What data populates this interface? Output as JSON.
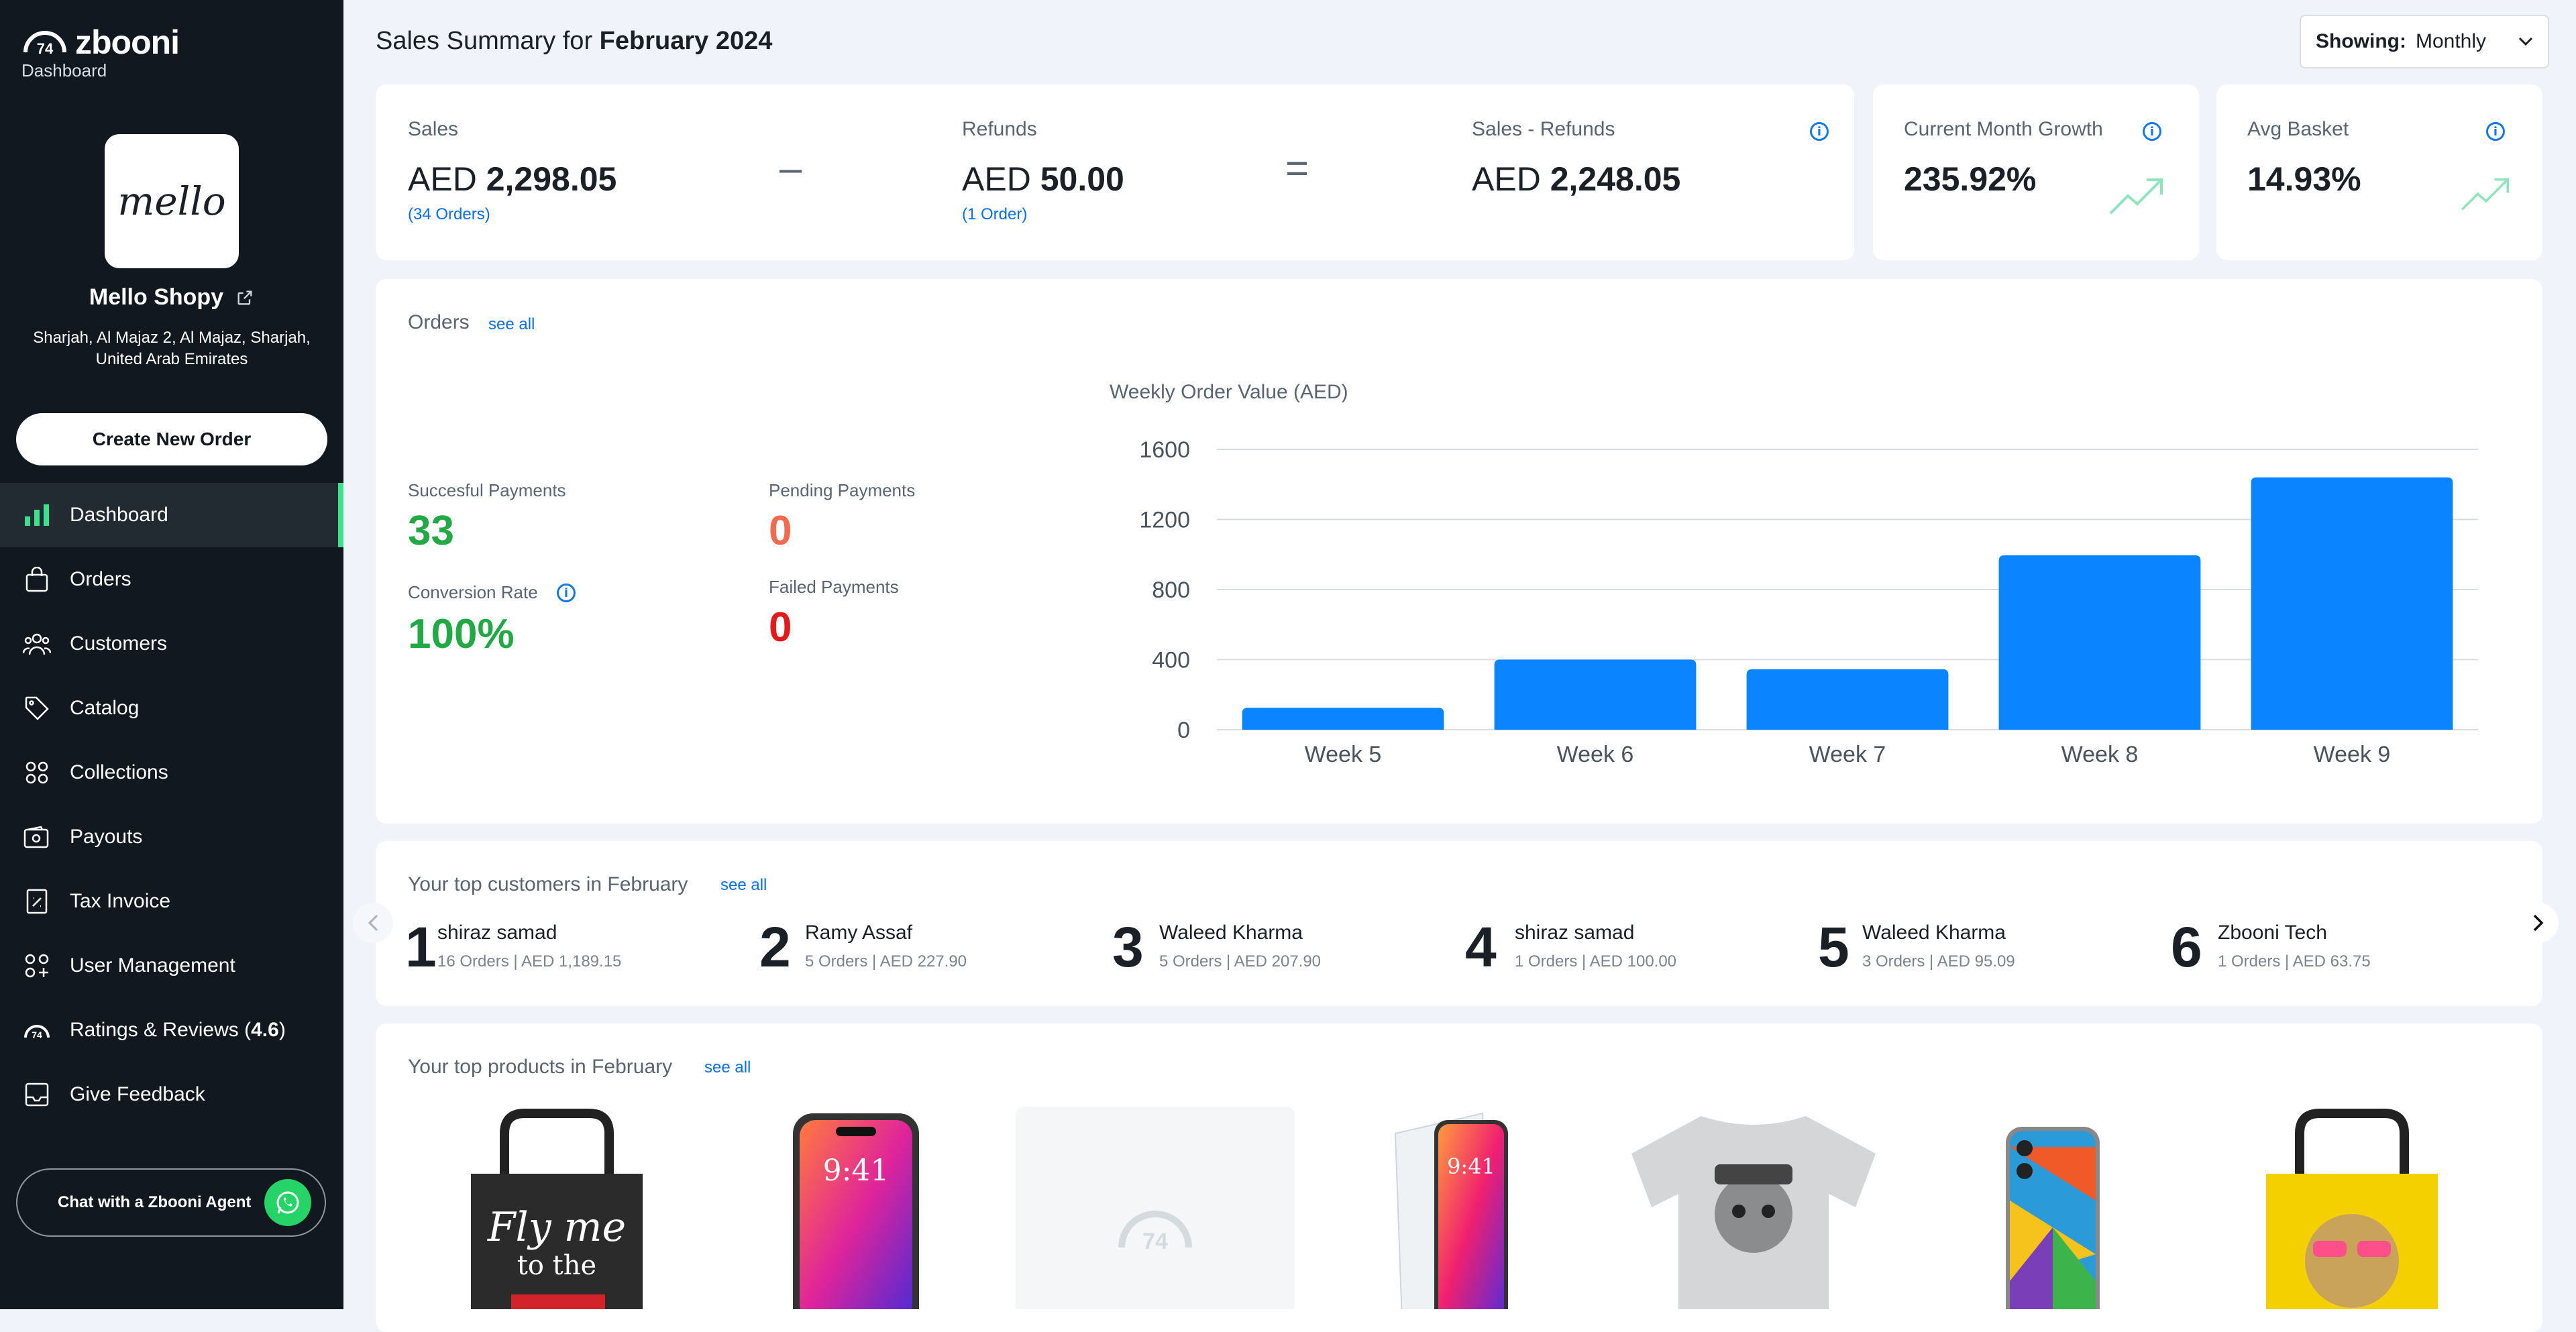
{
  "sidebar": {
    "brand_name": "zbooni",
    "brand_sub": "Dashboard",
    "store_logo_text": "mello",
    "store_name": "Mello Shopy",
    "store_address": "Sharjah, Al Majaz 2, Al Majaz, Sharjah, United Arab Emirates",
    "create_order_label": "Create New Order",
    "nav": [
      {
        "label": "Dashboard",
        "icon": "bar-chart-icon"
      },
      {
        "label": "Orders",
        "icon": "shopping-bag-icon"
      },
      {
        "label": "Customers",
        "icon": "users-icon"
      },
      {
        "label": "Catalog",
        "icon": "tag-icon"
      },
      {
        "label": "Collections",
        "icon": "grid-icon"
      },
      {
        "label": "Payouts",
        "icon": "wallet-icon"
      },
      {
        "label": "Tax Invoice",
        "icon": "invoice-icon"
      },
      {
        "label": "User Management",
        "icon": "user-management-icon"
      },
      {
        "label": "Ratings & Reviews (",
        "rating": "4.6",
        "suffix": ")",
        "icon": "zbooni-rating-icon"
      },
      {
        "label": "Give Feedback",
        "icon": "feedback-icon"
      }
    ],
    "chat_label": "Chat with a Zbooni Agent"
  },
  "header": {
    "title_prefix": "Sales Summary for",
    "title_period": "February 2024",
    "showing_label": "Showing:",
    "showing_value": "Monthly"
  },
  "summary": {
    "sales_label": "Sales",
    "sales_currency": "AED",
    "sales_value": "2,298.05",
    "sales_orders": "(34 Orders)",
    "minus_symbol": "–",
    "refunds_label": "Refunds",
    "refunds_currency": "AED",
    "refunds_value": "50.00",
    "refunds_orders": "(1 Order)",
    "equals_symbol": "=",
    "net_label": "Sales - Refunds",
    "net_currency": "AED",
    "net_value": "2,248.05",
    "growth_label": "Current Month Growth",
    "growth_value": "235.92%",
    "basket_label": "Avg Basket",
    "basket_value": "14.93%"
  },
  "orders": {
    "title": "Orders",
    "see_all": "see all",
    "successful_label": "Succesful Payments",
    "successful_value": "33",
    "pending_label": "Pending Payments",
    "pending_value": "0",
    "conversion_label": "Conversion Rate",
    "conversion_value": "100%",
    "failed_label": "Failed Payments",
    "failed_value": "0"
  },
  "chart_data": {
    "type": "bar",
    "title": "Weekly Order Value (AED)",
    "categories": [
      "Week 5",
      "Week 6",
      "Week 7",
      "Week 8",
      "Week 9"
    ],
    "values": [
      125,
      400,
      345,
      995,
      1440
    ],
    "yticks": [
      0,
      400,
      800,
      1200,
      1600
    ],
    "ylim": [
      0,
      1600
    ],
    "grid": true,
    "bar_color": "#0a84ff"
  },
  "customers": {
    "title": "Your top customers in February",
    "see_all": "see all",
    "items": [
      {
        "rank": "1",
        "name": "shiraz samad",
        "sub": "16 Orders | AED 1,189.15"
      },
      {
        "rank": "2",
        "name": "Ramy Assaf",
        "sub": "5 Orders | AED 227.90"
      },
      {
        "rank": "3",
        "name": "Waleed Kharma",
        "sub": "5 Orders | AED 207.90"
      },
      {
        "rank": "4",
        "name": "shiraz samad",
        "sub": "1 Orders | AED 100.00"
      },
      {
        "rank": "5",
        "name": "Waleed Kharma",
        "sub": "3 Orders | AED 95.09"
      },
      {
        "rank": "6",
        "name": "Zbooni Tech",
        "sub": "1 Orders | AED 63.75"
      }
    ]
  },
  "products": {
    "title": "Your top products in February",
    "see_all": "see all",
    "tote_text_1": "Fly me",
    "tote_text_2": "to the",
    "phone_time": "9:41"
  },
  "colors": {
    "sidebar_bg": "#111820",
    "accent_green": "#3ee08c",
    "success_green": "#22a845",
    "pending_orange": "#f26b4f",
    "failed_red": "#e21a1a",
    "link_blue": "#0a6ee8",
    "bar_blue": "#0a84ff"
  }
}
